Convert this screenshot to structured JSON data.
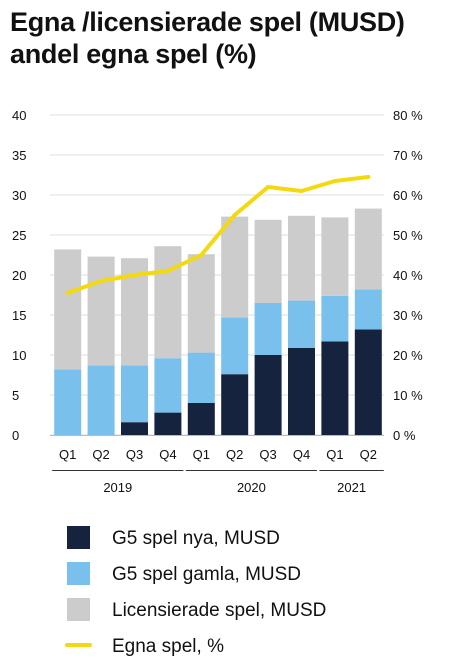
{
  "chart_data": {
    "type": "bar",
    "stacked": true,
    "title": "Egna /licensierade spel (MUSD) andel egna spel (%)",
    "categories": [
      "Q1",
      "Q2",
      "Q3",
      "Q4",
      "Q1",
      "Q2",
      "Q3",
      "Q4",
      "Q1",
      "Q2"
    ],
    "groups": [
      {
        "label": "2019",
        "from": 0,
        "to": 3
      },
      {
        "label": "2020",
        "from": 4,
        "to": 7
      },
      {
        "label": "2021",
        "from": 8,
        "to": 9
      }
    ],
    "ylim": [
      0,
      40
    ],
    "yticks": [
      "0",
      "5",
      "10",
      "15",
      "20",
      "25",
      "30",
      "35",
      "40"
    ],
    "y2lim": [
      0,
      80
    ],
    "y2ticks": [
      "0 %",
      "10 %",
      "20 %",
      "30 %",
      "40 %",
      "50 %",
      "60 %",
      "70 %",
      "80 %"
    ],
    "series": [
      {
        "name": "G5 spel nya, MUSD",
        "color": "#15233f",
        "values": [
          0,
          0,
          1.6,
          2.8,
          4.0,
          7.6,
          10.0,
          10.9,
          11.7,
          13.2
        ]
      },
      {
        "name": "G5 spel gamla, MUSD",
        "color": "#79c1ec",
        "values": [
          8.2,
          8.7,
          7.1,
          6.8,
          6.3,
          7.1,
          6.5,
          5.9,
          5.7,
          5.0
        ]
      },
      {
        "name": "Licensierade spel, MUSD",
        "color": "#cccccc",
        "values": [
          15.0,
          13.6,
          13.4,
          14.0,
          12.3,
          12.6,
          10.4,
          10.6,
          9.8,
          10.1
        ]
      }
    ],
    "line": {
      "name": "Egna spel, %",
      "color": "#f4d90f",
      "values": [
        35.5,
        38.5,
        40.0,
        41.0,
        45.0,
        55.0,
        62.0,
        61.0,
        63.5,
        64.5
      ]
    },
    "grid": true,
    "legend_position": "bottom"
  }
}
